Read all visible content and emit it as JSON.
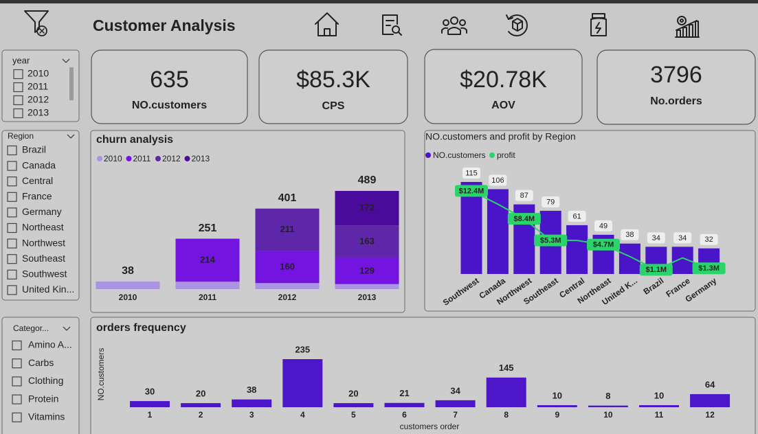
{
  "header": {
    "title": "Customer Analysis"
  },
  "slicers": [
    {
      "title": "year",
      "items": [
        "2010",
        "2011",
        "2012",
        "2013"
      ]
    },
    {
      "title": "Region",
      "items": [
        "Brazil",
        "Canada",
        "Central",
        "France",
        "Germany",
        "Northeast",
        "Northwest",
        "Southeast",
        "Southwest",
        "United Kin..."
      ]
    },
    {
      "title": "Categor...",
      "items": [
        "Amino A...",
        "Carbs",
        "Clothing",
        "Protein",
        "Vitamins"
      ]
    }
  ],
  "cards": [
    {
      "value": "635",
      "label": "NO.customers"
    },
    {
      "value": "$85.3K",
      "label": "CPS"
    },
    {
      "value": "$20.78K",
      "label": "AOV"
    },
    {
      "value": "3796",
      "label": "No.orders"
    }
  ],
  "chart_data": [
    {
      "type": "stacked",
      "title": "churn analysis",
      "categories": [
        "2010",
        "2011",
        "2012",
        "2013"
      ],
      "series": [
        {
          "name": "2010",
          "color": "#ab93e2",
          "values": [
            38,
            37,
            30,
            25
          ]
        },
        {
          "name": "2011",
          "color": "#7414e0",
          "values": [
            null,
            214,
            160,
            129
          ]
        },
        {
          "name": "2012",
          "color": "#5e26a8",
          "values": [
            null,
            null,
            211,
            163
          ]
        },
        {
          "name": "2013",
          "color": "#4a0b9c",
          "values": [
            null,
            null,
            null,
            172
          ]
        }
      ],
      "totals": [
        38,
        251,
        401,
        489
      ]
    },
    {
      "type": "combo",
      "title": "NO.customers and profit by Region",
      "categories": [
        "Southwest",
        "Canada",
        "Northwest",
        "Southeast",
        "Central",
        "Northeast",
        "United K...",
        "Brazil",
        "France",
        "Germany"
      ],
      "series": [
        {
          "name": "NO.customers",
          "color": "#4a14c8",
          "values": [
            115,
            106,
            87,
            79,
            61,
            49,
            38,
            34,
            34,
            32
          ]
        },
        {
          "name": "profit",
          "color": "#2bd46a",
          "values": [
            12.4,
            10.5,
            8.4,
            5.3,
            5.3,
            4.7,
            3.0,
            1.1,
            2.8,
            1.3
          ],
          "value_labels": [
            "$12.4M",
            null,
            "$8.4M",
            "$5.3M",
            null,
            "$4.7M",
            null,
            "$1.1M",
            null,
            "$1.3M"
          ]
        }
      ]
    },
    {
      "type": "bar",
      "title": "orders frequency",
      "categories": [
        "1",
        "2",
        "3",
        "4",
        "5",
        "6",
        "7",
        "8",
        "9",
        "10",
        "11",
        "12"
      ],
      "values": [
        30,
        20,
        38,
        235,
        20,
        21,
        34,
        145,
        10,
        8,
        10,
        64
      ],
      "color": "#4d17c9",
      "ylabel": "NO.customers",
      "xlabel": "customers order"
    }
  ]
}
